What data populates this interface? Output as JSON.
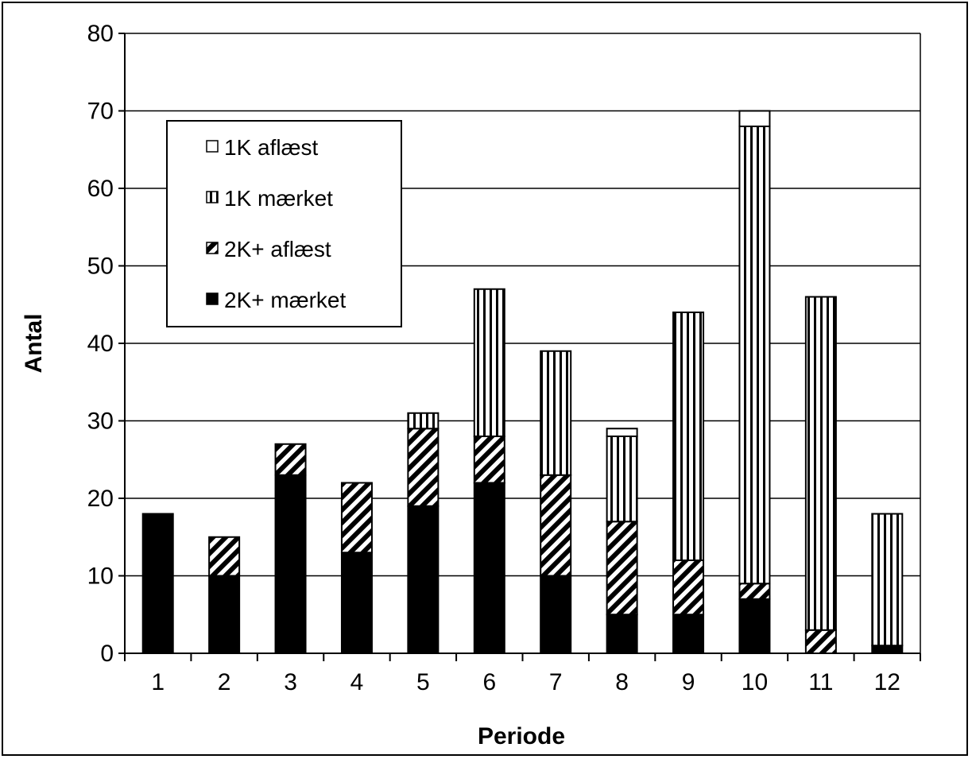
{
  "chart_data": {
    "type": "bar",
    "stacked": true,
    "categories": [
      "1",
      "2",
      "3",
      "4",
      "5",
      "6",
      "7",
      "8",
      "9",
      "10",
      "11",
      "12"
    ],
    "series": [
      {
        "name": "2K+ mærket",
        "pattern": "solid",
        "values": [
          18,
          10,
          23,
          13,
          19,
          22,
          10,
          5,
          5,
          7,
          0,
          1
        ]
      },
      {
        "name": "2K+ aflæst",
        "pattern": "diagonal",
        "values": [
          0,
          5,
          4,
          9,
          10,
          6,
          13,
          12,
          7,
          2,
          3,
          0
        ]
      },
      {
        "name": "1K mærket",
        "pattern": "vertical",
        "values": [
          0,
          0,
          0,
          0,
          2,
          19,
          16,
          11,
          32,
          59,
          43,
          17
        ]
      },
      {
        "name": "1K aflæst",
        "pattern": "empty",
        "values": [
          0,
          0,
          0,
          0,
          0,
          0,
          0,
          1,
          0,
          2,
          0,
          0
        ]
      }
    ],
    "legend_order": [
      "1K aflæst",
      "1K mærket",
      "2K+ aflæst",
      "2K+ mærket"
    ],
    "xlabel": "Periode",
    "ylabel": "Antal",
    "ylim": [
      0,
      80
    ],
    "yticks": [
      "0",
      "10",
      "20",
      "30",
      "40",
      "50",
      "60",
      "70",
      "80"
    ],
    "grid": true,
    "legend_position": "top-left",
    "colors": {
      "bar_fill": "#000000",
      "background": "#ffffff",
      "gridline": "#000000"
    }
  }
}
